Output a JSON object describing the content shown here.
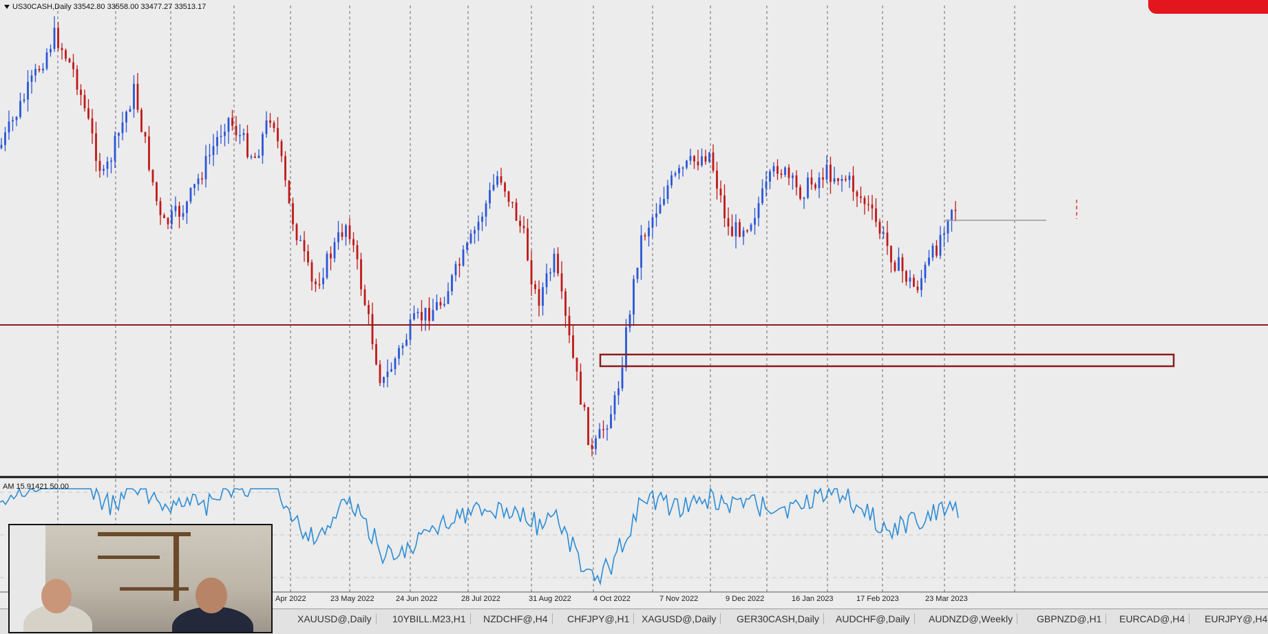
{
  "symbol_info": "US30CASH,Daily  33542.80 33558.00 33477.27 33513.17",
  "indicator_label": "AM 15.91421 50.00",
  "colors": {
    "bull": "#2a56d6",
    "bear": "#c01818",
    "level": "#8b1b1b",
    "oscillator": "#2b8cd6",
    "badge": "#e4161d"
  },
  "x_labels": [
    "Apr 2022",
    "23 May 2022",
    "24 Jun 2022",
    "28 Jul 2022",
    "31 Aug 2022",
    "4 Oct 2022",
    "7 Nov 2022",
    "9 Dec 2022",
    "16 Jan 2023",
    "17 Feb 2023",
    "23 Mar 2023"
  ],
  "tabs": [
    "XAUUSD@,Daily",
    "10YBILL.M23,H1",
    "NZDCHF@,H4",
    "CHFJPY@,H1",
    "XAGUSD@,Daily",
    "GER30CASH,Daily",
    "AUDCHF@,Daily",
    "AUDNZD@,Weekly",
    "GBPNZD@,H1",
    "EURCAD@,H4",
    "EURJPY@,H4"
  ],
  "chart_data": {
    "type": "candlestick",
    "oscillator_levels": [
      20,
      50,
      80
    ]
  }
}
